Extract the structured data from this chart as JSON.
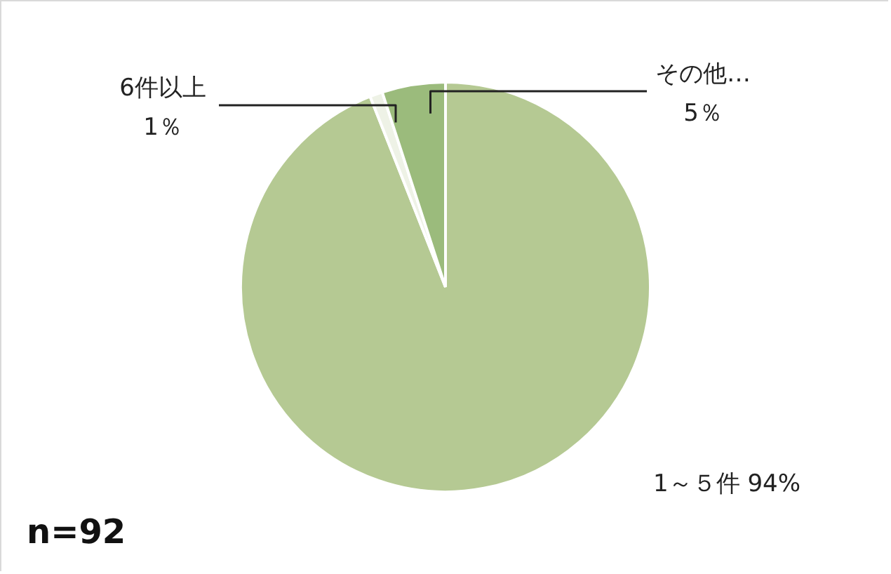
{
  "chart_data": {
    "type": "pie",
    "categories": [
      "1～５件",
      "6件以上",
      "その他…"
    ],
    "values": [
      94,
      1,
      5
    ],
    "value_labels": [
      "94%",
      "1％",
      "5％"
    ],
    "colors": [
      "#b5c993",
      "#eef2e6",
      "#9bbb7c"
    ],
    "annotations": [
      "n=92"
    ]
  }
}
